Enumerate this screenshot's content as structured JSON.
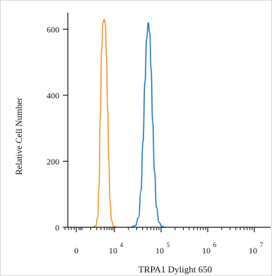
{
  "chart_data": {
    "type": "line",
    "title": "",
    "xlabel": "TRPA1 Dylight 650",
    "ylabel": "Relative Cell Number",
    "xscale": "log (biexponential with 0)",
    "ylim": [
      0,
      650
    ],
    "y_ticks": [
      {
        "value": 0,
        "label": "0"
      },
      {
        "value": 200,
        "label": "200"
      },
      {
        "value": 400,
        "label": "400"
      },
      {
        "value": 600,
        "label": "600"
      }
    ],
    "x_ticks": [
      {
        "value": 0,
        "label": "0"
      },
      {
        "value": 10000,
        "label": "10",
        "exp": "4"
      },
      {
        "value": 100000,
        "label": "10",
        "exp": "5"
      },
      {
        "value": 1000000,
        "label": "10",
        "exp": "6"
      },
      {
        "value": 10000000,
        "label": "10",
        "exp": "7"
      }
    ],
    "grid": false,
    "legend": "none",
    "series": [
      {
        "color": "#f0962a",
        "peak_x": 5000,
        "peak_y": 630,
        "points": [
          [
            2200,
            0
          ],
          [
            2800,
            4
          ],
          [
            3200,
            30
          ],
          [
            3500,
            120
          ],
          [
            3800,
            330
          ],
          [
            4200,
            540
          ],
          [
            4600,
            620
          ],
          [
            5000,
            630
          ],
          [
            5400,
            615
          ],
          [
            5800,
            520
          ],
          [
            6300,
            360
          ],
          [
            6800,
            200
          ],
          [
            7400,
            80
          ],
          [
            8200,
            20
          ],
          [
            9500,
            3
          ],
          [
            11000,
            0
          ]
        ]
      },
      {
        "color": "#1f77c4",
        "peak_x": 53000,
        "peak_y": 620,
        "points": [
          [
            22000,
            0
          ],
          [
            28000,
            5
          ],
          [
            33000,
            30
          ],
          [
            37000,
            110
          ],
          [
            41000,
            260
          ],
          [
            45000,
            440
          ],
          [
            49000,
            570
          ],
          [
            53000,
            620
          ],
          [
            57000,
            590
          ],
          [
            61000,
            480
          ],
          [
            66000,
            320
          ],
          [
            72000,
            170
          ],
          [
            80000,
            60
          ],
          [
            90000,
            15
          ],
          [
            105000,
            2
          ],
          [
            125000,
            0
          ]
        ]
      }
    ]
  }
}
